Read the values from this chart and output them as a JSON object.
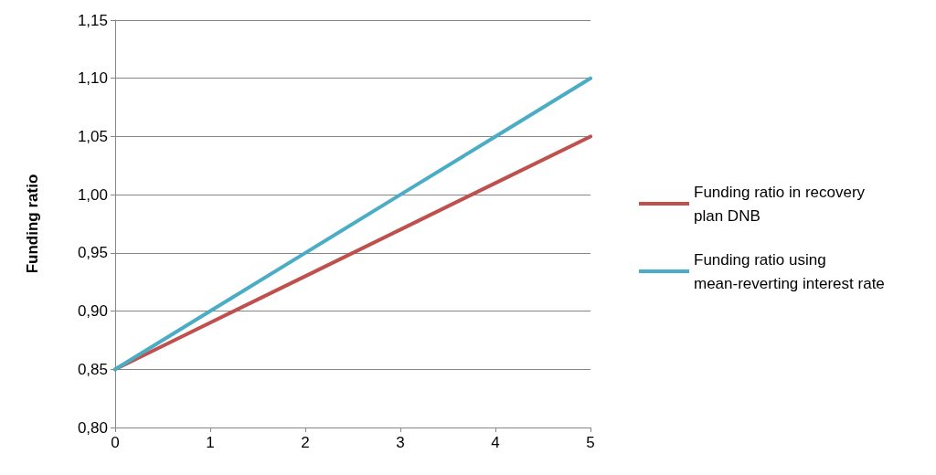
{
  "chart_data": {
    "type": "line",
    "ylabel": "Funding ratio",
    "x": [
      0,
      1,
      2,
      3,
      4,
      5
    ],
    "series": [
      {
        "name": "Funding ratio in recovery plan DNB",
        "color": "#c0504d",
        "values": [
          0.85,
          0.89,
          0.93,
          0.97,
          1.01,
          1.05
        ]
      },
      {
        "name": "Funding ratio using mean-reverting interest rate",
        "color": "#4bacc6",
        "values": [
          0.85,
          0.9,
          0.95,
          1.0,
          1.05,
          1.1
        ]
      }
    ],
    "xlim": [
      0,
      5
    ],
    "xticks": [
      0,
      1,
      2,
      3,
      4,
      5
    ],
    "ylim": [
      0.8,
      1.15
    ],
    "yticks": [
      {
        "value": 0.8,
        "label": "0,80"
      },
      {
        "value": 0.85,
        "label": "0,85"
      },
      {
        "value": 0.9,
        "label": "0,90"
      },
      {
        "value": 0.95,
        "label": "0,95"
      },
      {
        "value": 1.0,
        "label": "1,00"
      },
      {
        "value": 1.05,
        "label": "1,05"
      },
      {
        "value": 1.1,
        "label": "1,10"
      },
      {
        "value": 1.15,
        "label": "1,15"
      }
    ],
    "grid": "y",
    "legend": "right",
    "marker": "none",
    "line_style": "solid"
  }
}
